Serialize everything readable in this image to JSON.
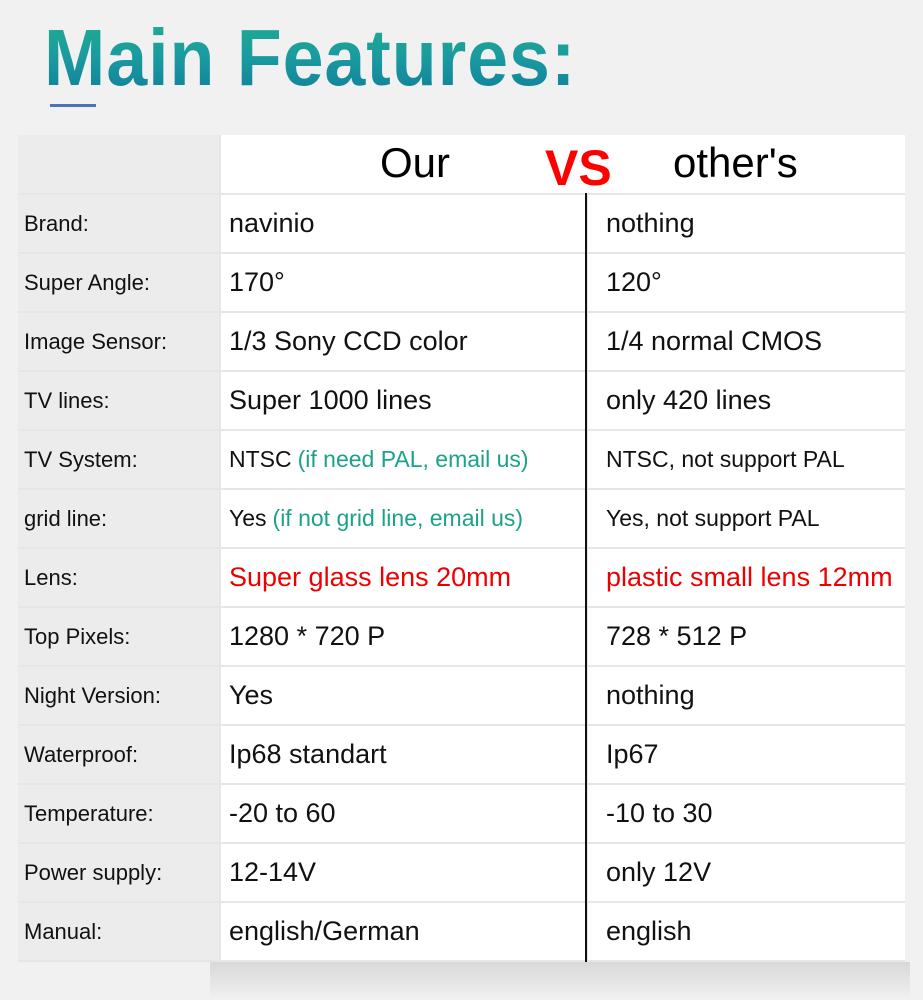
{
  "title": "Main Features:",
  "header": {
    "our": "Our",
    "vs": "VS",
    "others": "other's"
  },
  "colors": {
    "title_gradient_top": "#22b08a",
    "title_gradient_bottom": "#0d7a98",
    "vs": "#ff0000",
    "note": "#1aa38a",
    "highlight": "#ee0000"
  },
  "rows": [
    {
      "label": "Brand:",
      "our": "navinio",
      "others": "nothing"
    },
    {
      "label": "Super Angle:",
      "our": "170°",
      "others": "120°"
    },
    {
      "label": "Image Sensor:",
      "our": "1/3 Sony CCD color",
      "others": "1/4 normal CMOS"
    },
    {
      "label": "TV lines:",
      "our": "Super 1000 lines",
      "others": "only 420 lines"
    },
    {
      "label": "TV System:",
      "our": "NTSC",
      "our_note": "(if need PAL, email us)",
      "others": "NTSC, not support PAL"
    },
    {
      "label": "grid line:",
      "our": "Yes",
      "our_note": "(if not grid line, email us)",
      "others": "Yes, not support PAL"
    },
    {
      "label": "Lens:",
      "our": "Super glass lens 20mm",
      "others": "plastic small lens 12mm"
    },
    {
      "label": "Top Pixels:",
      "our": "1280 * 720 P",
      "others": "728 * 512 P"
    },
    {
      "label": "Night Version:",
      "our": "Yes",
      "others": "nothing"
    },
    {
      "label": "Waterproof:",
      "our": "Ip68 standart",
      "others": "Ip67"
    },
    {
      "label": "Temperature:",
      "our": "-20 to 60",
      "others": "-10 to 30"
    },
    {
      "label": "Power supply:",
      "our": "12-14V",
      "others": "only 12V"
    },
    {
      "label": "Manual:",
      "our": "english/German",
      "others": "english"
    }
  ]
}
